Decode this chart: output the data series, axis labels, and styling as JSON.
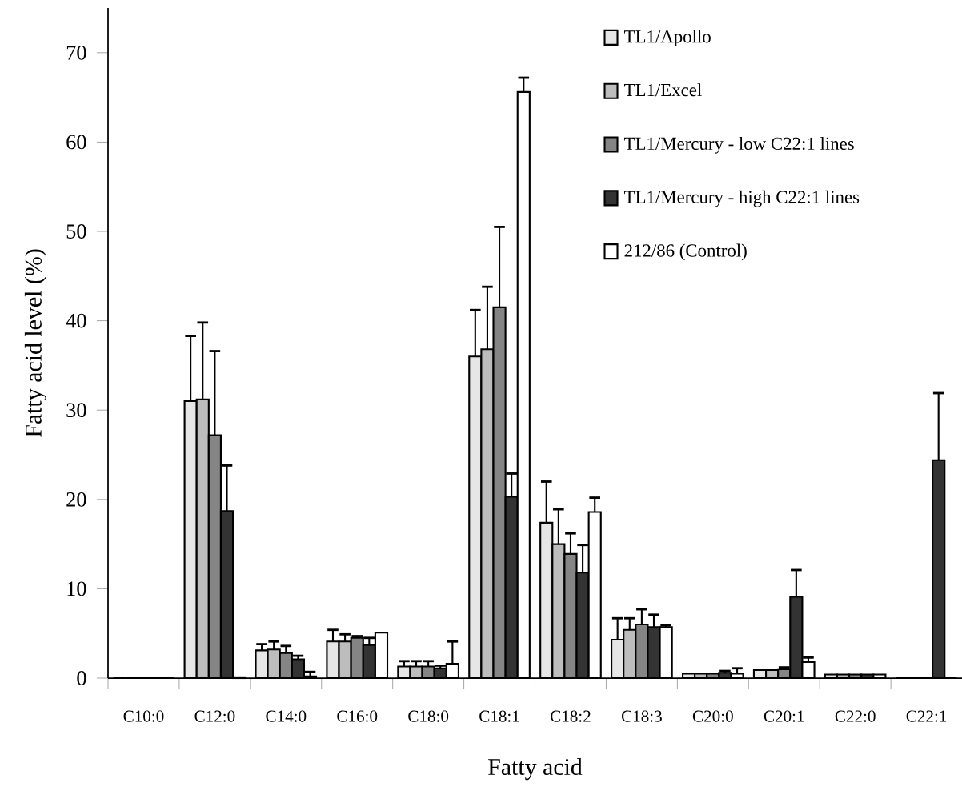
{
  "chart_data": {
    "type": "bar",
    "xlabel": "Fatty acid",
    "ylabel": "Fatty acid level (%)",
    "categories": [
      "C10:0",
      "C12:0",
      "C14:0",
      "C16:0",
      "C18:0",
      "C18:1",
      "C18:2",
      "C18:3",
      "C20:0",
      "C20:1",
      "C22:0",
      "C22:1"
    ],
    "series": [
      {
        "name": "TL1/Apollo",
        "color": "#e6e6e6",
        "values": [
          0,
          31.0,
          3.1,
          4.1,
          1.3,
          36.0,
          17.4,
          4.3,
          0.5,
          0.9,
          0.4,
          0
        ],
        "errors": [
          null,
          7.3,
          0.7,
          1.3,
          0.6,
          5.2,
          4.6,
          2.4,
          null,
          null,
          null,
          null
        ]
      },
      {
        "name": "TL1/Excel",
        "color": "#bdbdbd",
        "values": [
          0,
          31.2,
          3.2,
          4.1,
          1.3,
          36.8,
          15.0,
          5.4,
          0.5,
          0.9,
          0.4,
          0
        ],
        "errors": [
          null,
          8.6,
          0.9,
          0.8,
          0.6,
          7.0,
          3.9,
          1.3,
          null,
          null,
          null,
          null
        ]
      },
      {
        "name": "TL1/Mercury - low C22:1 lines",
        "color": "#858585",
        "values": [
          0,
          27.2,
          2.8,
          4.5,
          1.3,
          41.5,
          13.9,
          6.0,
          0.5,
          1.0,
          0.4,
          0
        ],
        "errors": [
          null,
          9.4,
          0.8,
          0.2,
          0.6,
          9.0,
          2.3,
          1.7,
          null,
          0.2,
          null,
          null
        ]
      },
      {
        "name": "TL1/Mercury - high C22:1 lines",
        "color": "#333333",
        "values": [
          0,
          18.7,
          2.1,
          3.7,
          1.1,
          20.3,
          11.8,
          5.7,
          0.6,
          9.1,
          0.4,
          24.4
        ],
        "errors": [
          null,
          5.1,
          0.4,
          0.8,
          0.3,
          2.6,
          3.1,
          1.4,
          0.2,
          3.0,
          null,
          7.5
        ]
      },
      {
        "name": "212/86 (Control)",
        "color": "#ffffff",
        "values": [
          0,
          0.1,
          0.2,
          5.1,
          1.6,
          65.6,
          18.6,
          5.7,
          0.5,
          1.8,
          0.4,
          0
        ],
        "errors": [
          null,
          null,
          0.5,
          null,
          2.5,
          1.6,
          1.6,
          0.2,
          0.6,
          0.5,
          null,
          null
        ]
      }
    ],
    "ylim": [
      0,
      75
    ],
    "yticks": [
      0,
      10,
      20,
      30,
      40,
      50,
      60,
      70
    ],
    "grid": false,
    "legend": "top right"
  }
}
